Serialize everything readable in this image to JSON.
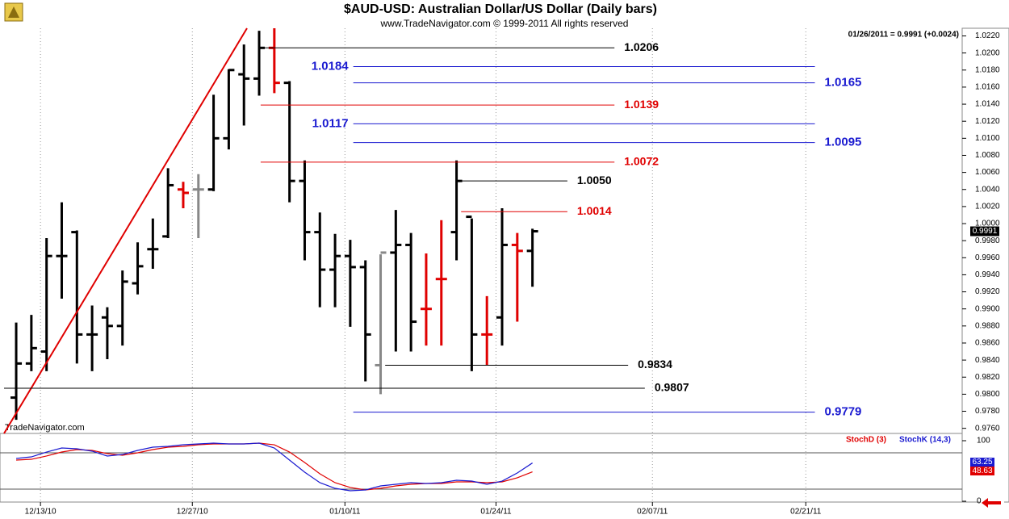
{
  "chart_data": [
    {
      "type": "ohlc",
      "title": "$AUD-USD:  Australian Dollar/US Dollar  (Daily bars)",
      "subtitle": "www.TradeNavigator.com © 1999-2011 All rights reserved",
      "annotation": "01/26/2011 = 0.9991 (+0.0024)",
      "watermark": "TradeNavigator.com",
      "xlim": [
        -0.8,
        62.3
      ],
      "xticks": [
        {
          "value": 1.6,
          "label": "12/13/10"
        },
        {
          "value": 11.6,
          "label": "12/27/10"
        },
        {
          "value": 21.65,
          "label": "01/10/11"
        },
        {
          "value": 31.6,
          "label": "01/24/11"
        },
        {
          "value": 41.9,
          "label": "02/07/11"
        },
        {
          "value": 52,
          "label": "02/21/11"
        }
      ],
      "ylim": [
        0.9754,
        1.0229
      ],
      "yticks": [
        {
          "value": 0.976,
          "label": "0.9760"
        },
        {
          "value": 0.978,
          "label": "0.9780"
        },
        {
          "value": 0.98,
          "label": "0.9800"
        },
        {
          "value": 0.982,
          "label": "0.9820"
        },
        {
          "value": 0.984,
          "label": "0.9840"
        },
        {
          "value": 0.986,
          "label": "0.9860"
        },
        {
          "value": 0.988,
          "label": "0.9880"
        },
        {
          "value": 0.99,
          "label": "0.9900"
        },
        {
          "value": 0.992,
          "label": "0.9920"
        },
        {
          "value": 0.994,
          "label": "0.9940"
        },
        {
          "value": 0.996,
          "label": "0.9960"
        },
        {
          "value": 0.998,
          "label": "0.9980"
        },
        {
          "value": 1,
          "label": "1.0000"
        },
        {
          "value": 1.002,
          "label": "1.0020"
        },
        {
          "value": 1.004,
          "label": "1.0040"
        },
        {
          "value": 1.006,
          "label": "1.0060"
        },
        {
          "value": 1.008,
          "label": "1.0080"
        },
        {
          "value": 1.01,
          "label": "1.0100"
        },
        {
          "value": 1.012,
          "label": "1.0120"
        },
        {
          "value": 1.014,
          "label": "1.0140"
        },
        {
          "value": 1.016,
          "label": "1.0160"
        },
        {
          "value": 1.018,
          "label": "1.0180"
        },
        {
          "value": 1.02,
          "label": "1.0200"
        },
        {
          "value": 1.022,
          "label": "1.0220"
        }
      ],
      "open": [
        0.9796,
        0.9836,
        0.985,
        0.9962,
        0.999,
        0.987,
        0.989,
        0.988,
        0.993,
        0.997,
        0.9985,
        1.004,
        1.004,
        1.004,
        1.01,
        1.0175,
        1.017,
        1.0206,
        1.0165,
        1.005,
        0.999,
        0.9946,
        0.9962,
        0.9949,
        0.9834,
        0.9966,
        0.9975,
        0.99,
        0.9935,
        0.999,
        1.0008,
        0.987,
        0.989,
        0.9975,
        0.9968
      ],
      "high": [
        0.9884,
        0.9893,
        0.9983,
        1.0025,
        0.9992,
        0.9904,
        0.9902,
        0.9945,
        0.9978,
        1.0006,
        1.0065,
        1.0049,
        1.0058,
        1.0151,
        1.0181,
        1.021,
        1.0226,
        1.0229,
        1.0167,
        1.0074,
        1.0013,
        0.9988,
        0.9981,
        0.9957,
        0.9964,
        1.0016,
        0.9989,
        0.9965,
        1.0004,
        1.0074,
        1.0006,
        0.9915,
        1.0018,
        0.9989,
        0.9994
      ],
      "low": [
        0.977,
        0.9827,
        0.9827,
        0.9912,
        0.9836,
        0.9827,
        0.9841,
        0.9857,
        0.9917,
        0.9947,
        0.9983,
        1.0018,
        0.9983,
        1.0038,
        1.0087,
        1.0115,
        1.015,
        1.0153,
        1.0025,
        0.9957,
        0.9902,
        0.9902,
        0.9879,
        0.9815,
        0.98,
        0.985,
        0.985,
        0.9857,
        0.9857,
        0.9957,
        0.9827,
        0.9834,
        0.9857,
        0.9885,
        0.9926
      ],
      "close": [
        0.9836,
        0.9854,
        0.9962,
        0.9962,
        0.987,
        0.987,
        0.988,
        0.9932,
        0.995,
        0.997,
        1.0045,
        1.0036,
        1.004,
        1.01,
        1.018,
        1.017,
        1.0206,
        1.0165,
        1.005,
        0.999,
        0.9946,
        0.9962,
        0.9949,
        0.987,
        0.9966,
        0.9975,
        0.9885,
        0.99,
        0.9935,
        1.005,
        0.987,
        0.987,
        0.9975,
        0.9968,
        0.9991
      ],
      "colors": [
        "#000000",
        "#000000",
        "#000000",
        "#000000",
        "#000000",
        "#000000",
        "#000000",
        "#000000",
        "#000000",
        "#000000",
        "#000000",
        "#e00000",
        "#888888",
        "#000000",
        "#000000",
        "#000000",
        "#000000",
        "#e00000",
        "#000000",
        "#000000",
        "#000000",
        "#000000",
        "#000000",
        "#000000",
        "#888888",
        "#000000",
        "#000000",
        "#e00000",
        "#e00000",
        "#000000",
        "#000000",
        "#e00000",
        "#000000",
        "#e00000",
        "#000000"
      ],
      "trendline": {
        "x": [
          -0.8,
          15.2
        ],
        "values": [
          0.9754,
          1.0229
        ],
        "color": "#e00000"
      },
      "levels": [
        {
          "value": 1.0206,
          "label": "1.0206",
          "color": "#000000",
          "x": [
            16.1,
            39.4
          ],
          "side": "right"
        },
        {
          "value": 1.0184,
          "label": "1.0184",
          "color": "#1a1ad0",
          "x": [
            22.2,
            52.6
          ],
          "side": "left"
        },
        {
          "value": 1.0165,
          "label": "1.0165",
          "color": "#1a1ad0",
          "x": [
            22.2,
            52.6
          ],
          "side": "right"
        },
        {
          "value": 1.0139,
          "label": "1.0139",
          "color": "#e00000",
          "x": [
            16.1,
            39.4
          ],
          "side": "right"
        },
        {
          "value": 1.0117,
          "label": "1.0117",
          "color": "#1a1ad0",
          "x": [
            22.2,
            52.6
          ],
          "side": "left"
        },
        {
          "value": 1.0095,
          "label": "1.0095",
          "color": "#1a1ad0",
          "x": [
            22.2,
            52.6
          ],
          "side": "right"
        },
        {
          "value": 1.0072,
          "label": "1.0072",
          "color": "#e00000",
          "x": [
            16.1,
            39.4
          ],
          "side": "right"
        },
        {
          "value": 1.005,
          "label": "1.0050",
          "color": "#000000",
          "x": [
            29.3,
            36.3
          ],
          "side": "right"
        },
        {
          "value": 1.0014,
          "label": "1.0014",
          "color": "#e00000",
          "x": [
            29.3,
            36.3
          ],
          "side": "right"
        },
        {
          "value": 0.9834,
          "label": "0.9834",
          "color": "#000000",
          "x": [
            24.3,
            40.3
          ],
          "side": "right"
        },
        {
          "value": 0.9807,
          "label": "0.9807",
          "color": "#000000",
          "x": [
            -0.8,
            41.4
          ],
          "side": "right"
        },
        {
          "value": 0.9779,
          "label": "0.9779",
          "color": "#1a1ad0",
          "x": [
            22.2,
            52.6
          ],
          "side": "right"
        }
      ]
    },
    {
      "type": "line",
      "ylim": [
        0,
        100
      ],
      "yticks": [
        0,
        100
      ],
      "bands": [
        20,
        80
      ],
      "series": [
        {
          "name": "StochD (3)",
          "color": "#e00000",
          "values": [
            68,
            69.3,
            74.7,
            81.3,
            85.3,
            84,
            78.7,
            76,
            80,
            85.3,
            89.3,
            90.7,
            93.3,
            94.7,
            94.7,
            94.7,
            96,
            93.3,
            81.3,
            64,
            45.3,
            30.7,
            22.7,
            18.7,
            21.3,
            25.3,
            28,
            29.3,
            29.3,
            32,
            32,
            30.7,
            32,
            38.7,
            48.63
          ]
        },
        {
          "name": "StochK (14,3)",
          "color": "#1a1ad0",
          "values": [
            70.7,
            73.3,
            81.3,
            88,
            86.7,
            82.7,
            74.7,
            77.3,
            84,
            89.3,
            90.7,
            93.3,
            94.7,
            96,
            94.7,
            94.7,
            96,
            88,
            68,
            48,
            30.7,
            21.3,
            17.3,
            18.7,
            25.3,
            28,
            30.7,
            29.3,
            30.7,
            34.7,
            33.3,
            28,
            33.3,
            46.7,
            63.25
          ]
        }
      ]
    }
  ]
}
